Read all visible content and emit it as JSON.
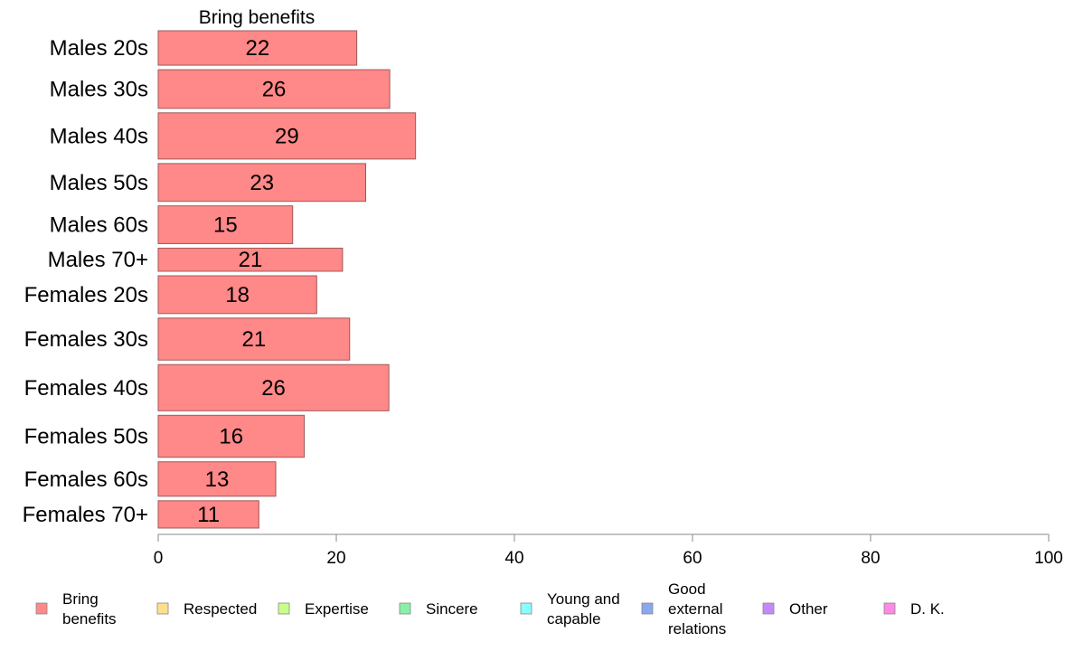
{
  "chart_data": {
    "type": "bar",
    "orientation": "horizontal",
    "stacked": true,
    "title": "Bring benefits",
    "categories": [
      "Males 20s",
      "Males 30s",
      "Males 40s",
      "Males 50s",
      "Males 60s",
      "Males 70+",
      "Females 20s",
      "Females 30s",
      "Females 40s",
      "Females 50s",
      "Females 60s",
      "Females 70+"
    ],
    "category_weights": [
      0.82,
      0.92,
      1.1,
      0.9,
      0.9,
      0.55,
      0.9,
      1.0,
      1.1,
      1.0,
      0.82,
      0.65
    ],
    "series": [
      {
        "name": "Bring benefits",
        "color": "#ff8888",
        "values": [
          22.3,
          26.0,
          28.9,
          23.3,
          15.1,
          20.7,
          17.8,
          21.5,
          25.9,
          16.4,
          13.2,
          11.3
        ],
        "labels": [
          "22",
          "26",
          "29",
          "23",
          "15",
          "21",
          "18",
          "21",
          "26",
          "16",
          "13",
          "11"
        ]
      }
    ],
    "xlim": [
      0,
      100
    ],
    "xticks": [
      "0",
      "20",
      "40",
      "60",
      "80",
      "100"
    ],
    "grid": false,
    "legend": {
      "position": "bottom",
      "items": [
        {
          "lines": [
            "Bring",
            "benefits"
          ],
          "color": "#ff8888"
        },
        {
          "lines": [
            "Respected"
          ],
          "color": "#ffe089"
        },
        {
          "lines": [
            "Expertise"
          ],
          "color": "#c9ff89"
        },
        {
          "lines": [
            "Sincere"
          ],
          "color": "#89f0a8"
        },
        {
          "lines": [
            "Young and",
            "capable"
          ],
          "color": "#89ffff"
        },
        {
          "lines": [
            "Good",
            "external",
            "relations"
          ],
          "color": "#89a8f0"
        },
        {
          "lines": [
            "Other"
          ],
          "color": "#c389ff"
        },
        {
          "lines": [
            "D. K."
          ],
          "color": "#ff89e6"
        }
      ]
    }
  }
}
